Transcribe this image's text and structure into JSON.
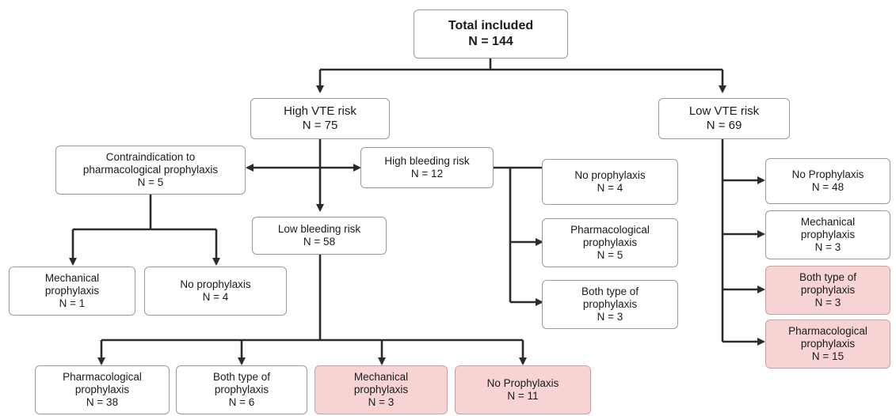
{
  "colors": {
    "highlight_fill": "#f7d3d3",
    "border": "#9a9a9a",
    "arrow": "#2b2b2b"
  },
  "nodes": {
    "total": {
      "label": "Total included",
      "n": "N = 144"
    },
    "high_vte": {
      "label": "High VTE risk",
      "n": "N = 75"
    },
    "low_vte": {
      "label": "Low VTE risk",
      "n": "N = 69"
    },
    "contra": {
      "label": "Contraindication to pharmacological prophylaxis",
      "n": "N = 5"
    },
    "high_bleed": {
      "label": "High bleeding risk",
      "n": "N = 12"
    },
    "low_bleed": {
      "label": "Low bleeding risk",
      "n": "N = 58"
    },
    "hb_none": {
      "label": "No prophylaxis",
      "n": "N = 4"
    },
    "hb_pharm": {
      "label": "Pharmacological prophylaxis",
      "n": "N = 5"
    },
    "hb_both": {
      "label": "Both type of prophylaxis",
      "n": "N = 3"
    },
    "c_mech": {
      "label": "Mechanical prophylaxis",
      "n": "N = 1"
    },
    "c_none": {
      "label": "No prophylaxis",
      "n": "N = 4"
    },
    "lb_pharm": {
      "label": "Pharmacological prophylaxis",
      "n": "N = 38"
    },
    "lb_both": {
      "label": "Both type of prophylaxis",
      "n": "N = 6"
    },
    "lb_mech": {
      "label": "Mechanical prophylaxis",
      "n": "N = 3"
    },
    "lb_none": {
      "label": "No Prophylaxis",
      "n": "N = 11"
    },
    "lv_none": {
      "label": "No Prophylaxis",
      "n": "N = 48"
    },
    "lv_mech": {
      "label": "Mechanical prophylaxis",
      "n": "N = 3"
    },
    "lv_both": {
      "label": "Both type of prophylaxis",
      "n": "N = 3"
    },
    "lv_pharm": {
      "label": "Pharmacological prophylaxis",
      "n": "N = 15"
    }
  }
}
